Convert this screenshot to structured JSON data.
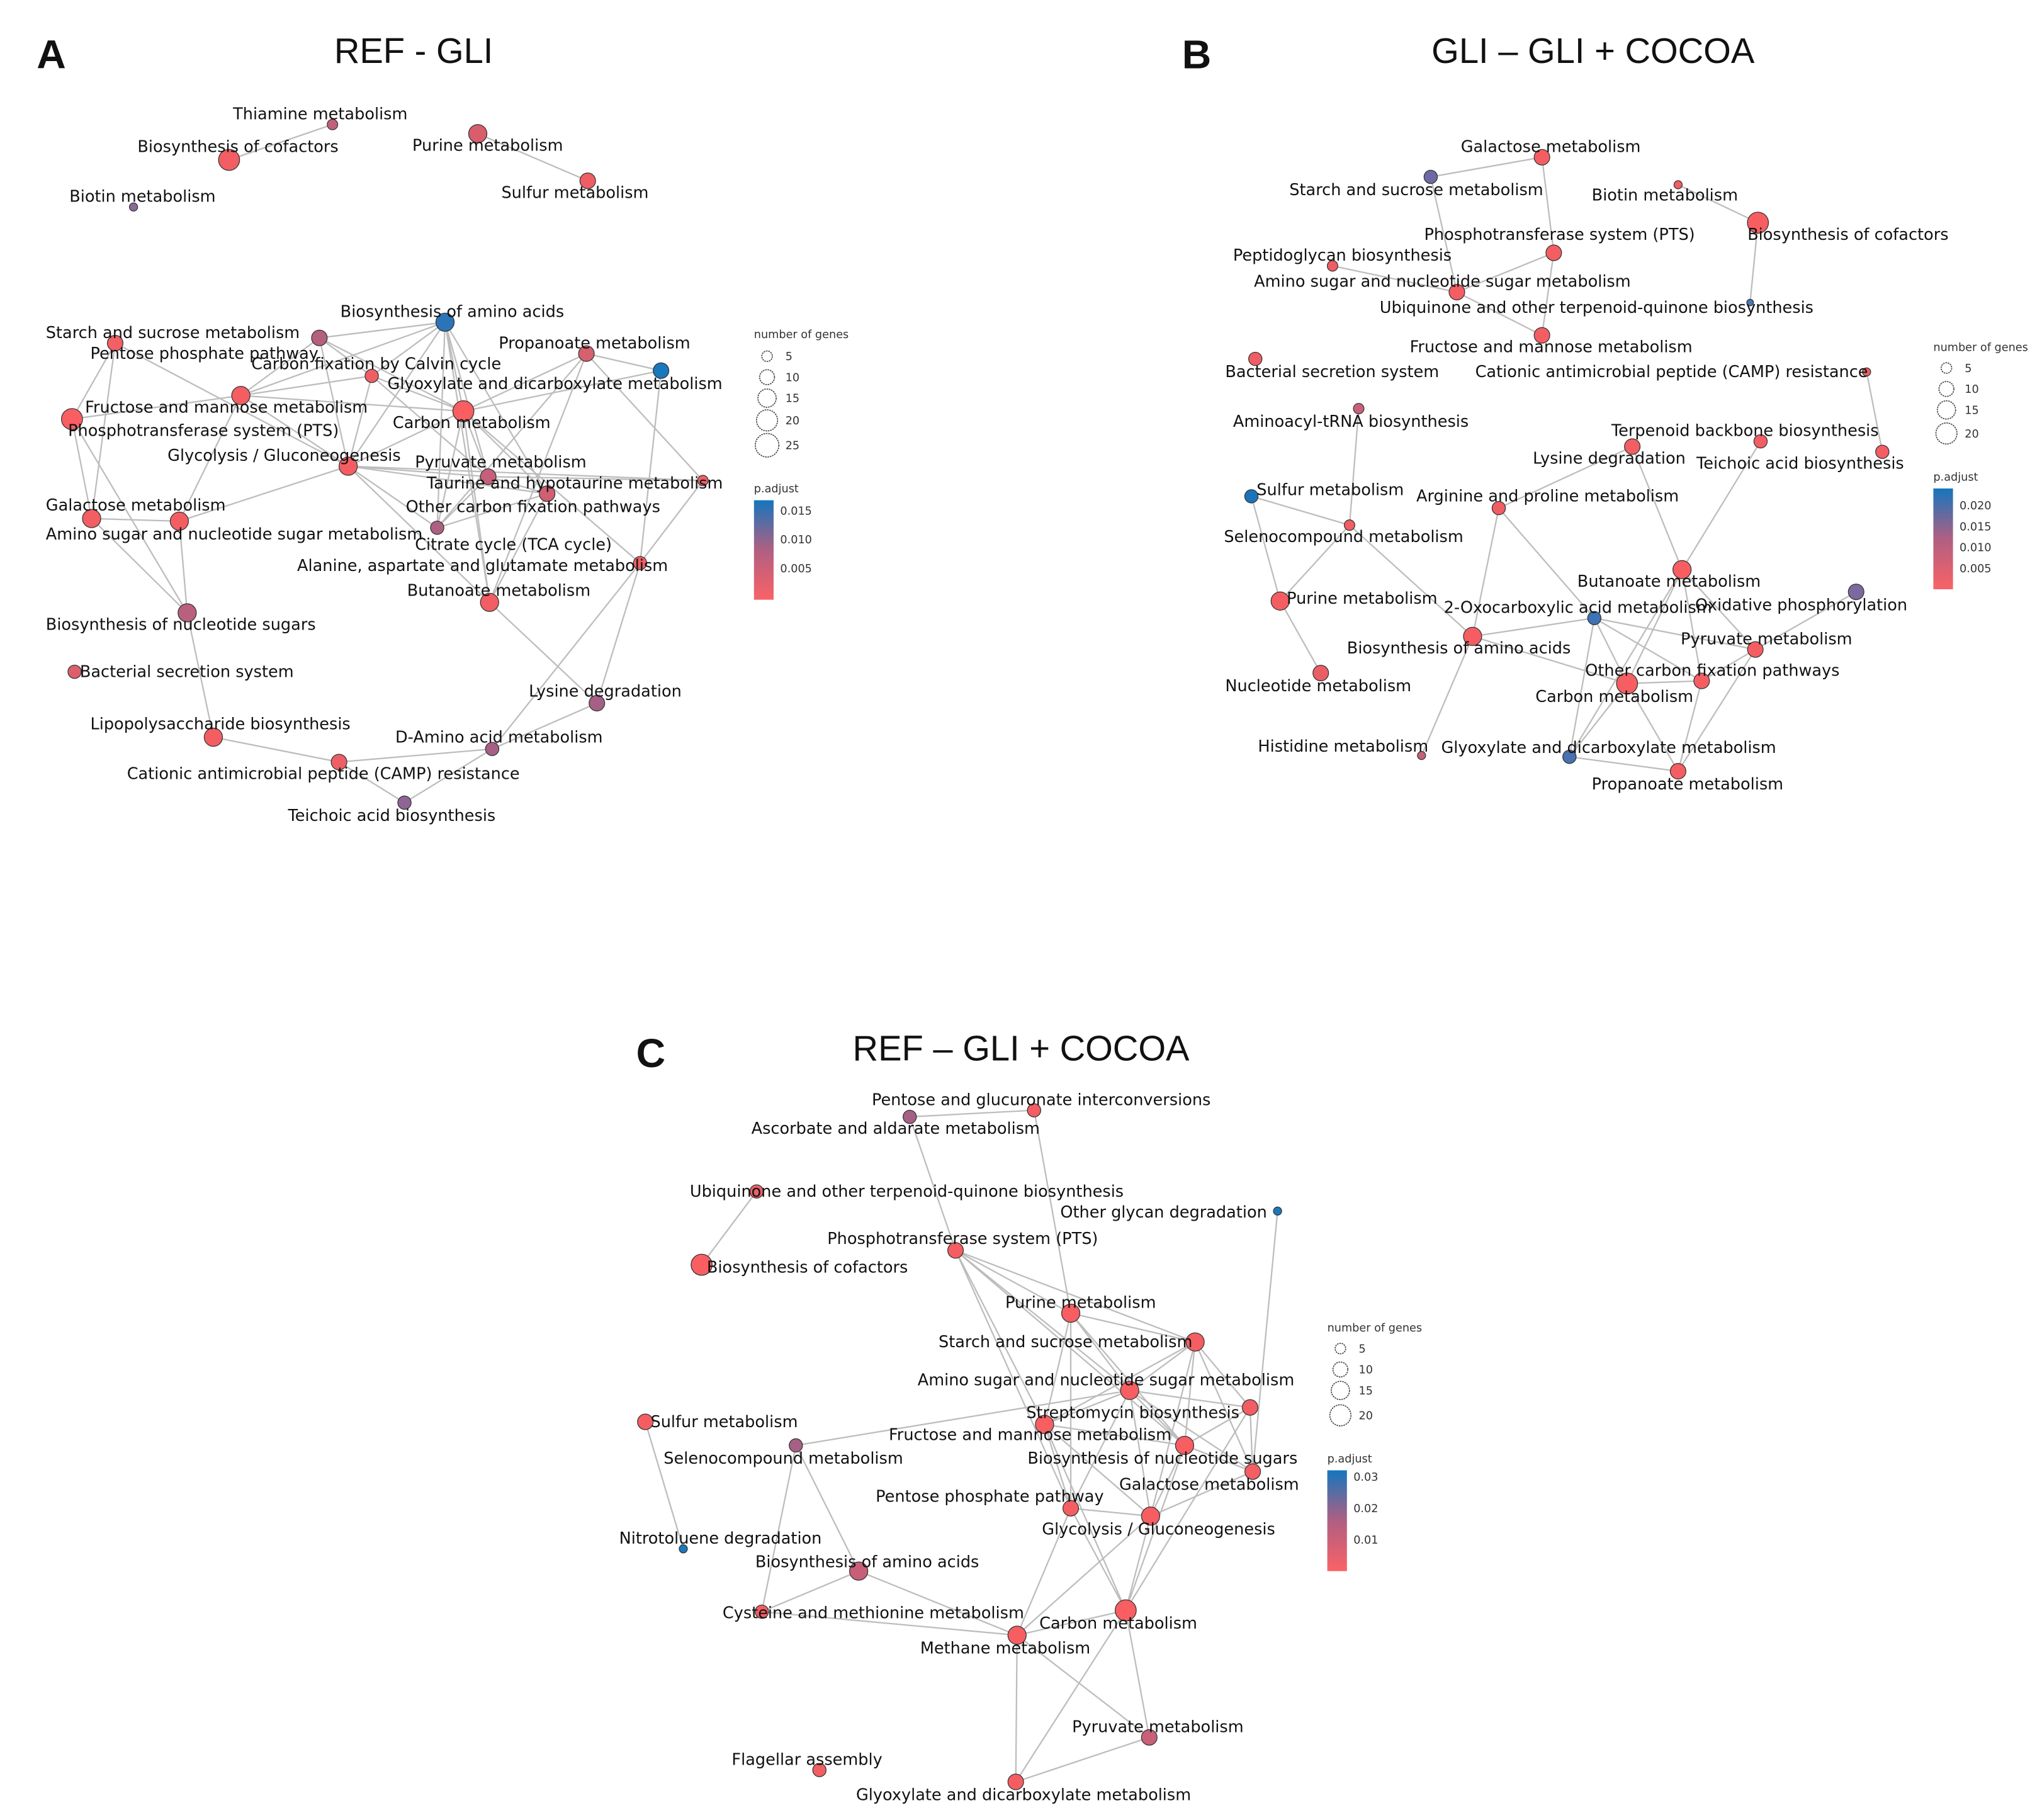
{
  "colors": {
    "low": "#fa6266",
    "mid": "#b05f82",
    "high": "#1576bd",
    "edge": "#bdbdbd"
  },
  "panels": [
    {
      "letter": "A",
      "title": "REF  - GLI",
      "legend": {
        "size_title": "number of genes",
        "sizes": [
          "5",
          "10",
          "15",
          "20",
          "25"
        ],
        "color_title": "p.adjust",
        "ticks": [
          "0.015",
          "0.010",
          "0.005"
        ]
      },
      "nodes": [
        {
          "label": "Thiamine metabolism",
          "color": "#c0607c",
          "genes": 5
        },
        {
          "label": "Biosynthesis of cofactors",
          "color": "#f25e63",
          "genes": 20
        },
        {
          "label": "Biotin metabolism",
          "color": "#8a6a98",
          "genes": 3
        },
        {
          "label": "Purine metabolism",
          "color": "#d85e6c",
          "genes": 15
        },
        {
          "label": "Sulfur metabolism",
          "color": "#ef5e64",
          "genes": 11
        },
        {
          "label": "Biosynthesis of amino acids",
          "color": "#2c74b8",
          "genes": 15
        },
        {
          "label": "Starch and sucrose metabolism",
          "color": "#b4607f",
          "genes": 11
        },
        {
          "label": "Pentose phosphate pathway",
          "color": "#f06064",
          "genes": 11
        },
        {
          "label": "Carbon fixation by Calvin cycle",
          "color": "#ee5f65",
          "genes": 8
        },
        {
          "label": "Propanoate metabolism",
          "color": "#d7606e",
          "genes": 11
        },
        {
          "label": "Glyoxylate and dicarboxylate metabolism",
          "color": "#1a78bd",
          "genes": 11
        },
        {
          "label": "Fructose and mannose metabolism",
          "color": "#f45e63",
          "genes": 15
        },
        {
          "label": "Phosphotransferase system (PTS)",
          "color": "#f85e62",
          "genes": 20
        },
        {
          "label": "Carbon metabolism",
          "color": "#f85e62",
          "genes": 20
        },
        {
          "label": "Glycolysis / Gluconeogenesis",
          "color": "#f45e63",
          "genes": 15
        },
        {
          "label": "Pyruvate metabolism",
          "color": "#c6607a",
          "genes": 11
        },
        {
          "label": "Taurine and hypotaurine metabolism",
          "color": "#e9616a",
          "genes": 5
        },
        {
          "label": "Other carbon fixation pathways",
          "color": "#d05f72",
          "genes": 11
        },
        {
          "label": "Galactose metabolism",
          "color": "#f35e63",
          "genes": 15
        },
        {
          "label": "Amino sugar and nucleotide sugar metabolism",
          "color": "#f35e63",
          "genes": 15
        },
        {
          "label": "Citrate cycle (TCA cycle)",
          "color": "#ad6082",
          "genes": 8
        },
        {
          "label": "Alanine, aspartate and glutamate metabolism",
          "color": "#ec5f66",
          "genes": 8
        },
        {
          "label": "Butanoate metabolism",
          "color": "#f25e63",
          "genes": 15
        },
        {
          "label": "Biosynthesis of nucleotide sugars",
          "color": "#b9607e",
          "genes": 15
        },
        {
          "label": "Bacterial secretion system",
          "color": "#dc5f6c",
          "genes": 8
        },
        {
          "label": "Lysine degradation",
          "color": "#a56086",
          "genes": 11
        },
        {
          "label": "Lipopolysaccharide biosynthesis",
          "color": "#f45e63",
          "genes": 15
        },
        {
          "label": "D-Amino acid metabolism",
          "color": "#a66085",
          "genes": 8
        },
        {
          "label": "Cationic antimicrobial peptide (CAMP) resistance",
          "color": "#ee5f65",
          "genes": 11
        },
        {
          "label": "Teichoic acid biosynthesis",
          "color": "#8e6594",
          "genes": 8
        }
      ],
      "edges": [
        [
          0,
          1
        ],
        [
          3,
          4
        ],
        [
          5,
          6
        ],
        [
          5,
          8
        ],
        [
          5,
          11
        ],
        [
          5,
          13
        ],
        [
          5,
          14
        ],
        [
          5,
          15
        ],
        [
          5,
          17
        ],
        [
          5,
          20
        ],
        [
          5,
          22
        ],
        [
          6,
          11
        ],
        [
          6,
          8
        ],
        [
          6,
          14
        ],
        [
          6,
          13
        ],
        [
          7,
          12
        ],
        [
          7,
          18
        ],
        [
          7,
          14
        ],
        [
          8,
          11
        ],
        [
          8,
          13
        ],
        [
          8,
          14
        ],
        [
          8,
          15
        ],
        [
          9,
          10
        ],
        [
          9,
          13
        ],
        [
          9,
          22
        ],
        [
          9,
          16
        ],
        [
          9,
          20
        ],
        [
          10,
          13
        ],
        [
          10,
          21
        ],
        [
          11,
          12
        ],
        [
          11,
          13
        ],
        [
          11,
          14
        ],
        [
          11,
          19
        ],
        [
          12,
          18
        ],
        [
          12,
          23
        ],
        [
          13,
          14
        ],
        [
          13,
          15
        ],
        [
          13,
          17
        ],
        [
          13,
          20
        ],
        [
          13,
          22
        ],
        [
          13,
          21
        ],
        [
          14,
          15
        ],
        [
          14,
          16
        ],
        [
          14,
          17
        ],
        [
          14,
          19
        ],
        [
          14,
          20
        ],
        [
          14,
          22
        ],
        [
          15,
          16
        ],
        [
          15,
          17
        ],
        [
          15,
          20
        ],
        [
          16,
          21
        ],
        [
          17,
          20
        ],
        [
          17,
          22
        ],
        [
          18,
          19
        ],
        [
          18,
          23
        ],
        [
          19,
          23
        ],
        [
          23,
          26
        ],
        [
          22,
          25
        ],
        [
          21,
          25
        ],
        [
          21,
          27
        ],
        [
          25,
          27
        ],
        [
          26,
          28
        ],
        [
          27,
          28
        ],
        [
          28,
          29
        ],
        [
          27,
          29
        ]
      ]
    },
    {
      "letter": "B",
      "title": "GLI – GLI + COCOA",
      "legend": {
        "size_title": "number of genes",
        "sizes": [
          "5",
          "10",
          "15",
          "20"
        ],
        "color_title": "p.adjust",
        "ticks": [
          "0.020",
          "0.015",
          "0.010",
          "0.005"
        ]
      },
      "nodes": [
        {
          "label": "Galactose metabolism",
          "color": "#f45e63",
          "genes": 11
        },
        {
          "label": "Starch and sucrose metabolism",
          "color": "#6c6aa4",
          "genes": 8
        },
        {
          "label": "Biotin metabolism",
          "color": "#f25e63",
          "genes": 3
        },
        {
          "label": "Biosynthesis of cofactors",
          "color": "#f65e62",
          "genes": 20
        },
        {
          "label": "Phosphotransferase system (PTS)",
          "color": "#f45e63",
          "genes": 11
        },
        {
          "label": "Peptidoglycan biosynthesis",
          "color": "#f05e64",
          "genes": 5
        },
        {
          "label": "Amino sugar and nucleotide sugar metabolism",
          "color": "#f45e63",
          "genes": 11
        },
        {
          "label": "Ubiquinone and other terpenoid-quinone biosynthesis",
          "color": "#4a78b8",
          "genes": 2
        },
        {
          "label": "Fructose and mannose metabolism",
          "color": "#f45e63",
          "genes": 11
        },
        {
          "label": "Bacterial secretion system",
          "color": "#ef5e64",
          "genes": 8
        },
        {
          "label": "Cationic antimicrobial peptide (CAMP) resistance",
          "color": "#e86068",
          "genes": 3
        },
        {
          "label": "Aminoacyl-tRNA biosynthesis",
          "color": "#c9607a",
          "genes": 5
        },
        {
          "label": "Terpenoid backbone biosynthesis",
          "color": "#f25e63",
          "genes": 8
        },
        {
          "label": "Lysine degradation",
          "color": "#f25e63",
          "genes": 11
        },
        {
          "label": "Teichoic acid biosynthesis",
          "color": "#f25e63",
          "genes": 8
        },
        {
          "label": "Sulfur metabolism",
          "color": "#1c74b8",
          "genes": 8
        },
        {
          "label": "Arginine and proline metabolism",
          "color": "#f05e64",
          "genes": 8
        },
        {
          "label": "Selenocompound metabolism",
          "color": "#f25e63",
          "genes": 5
        },
        {
          "label": "Butanoate metabolism",
          "color": "#f65e62",
          "genes": 15
        },
        {
          "label": "Oxidative phosphorylation",
          "color": "#7a6aa0",
          "genes": 11
        },
        {
          "label": "Purine metabolism",
          "color": "#f45e63",
          "genes": 15
        },
        {
          "label": "2-Oxocarboxylic acid metabolism",
          "color": "#3e73b4",
          "genes": 8
        },
        {
          "label": "Pyruvate metabolism",
          "color": "#f45e63",
          "genes": 11
        },
        {
          "label": "Biosynthesis of amino acids",
          "color": "#f45e63",
          "genes": 15
        },
        {
          "label": "Nucleotide metabolism",
          "color": "#ea5f66",
          "genes": 11
        },
        {
          "label": "Other carbon fixation pathways",
          "color": "#f45e63",
          "genes": 11
        },
        {
          "label": "Carbon metabolism",
          "color": "#f65e62",
          "genes": 20
        },
        {
          "label": "Histidine metabolism",
          "color": "#c4607a",
          "genes": 3
        },
        {
          "label": "Glyoxylate and dicarboxylate metabolism",
          "color": "#4a70b0",
          "genes": 8
        },
        {
          "label": "Propanoate metabolism",
          "color": "#f45e63",
          "genes": 11
        }
      ],
      "edges": [
        [
          0,
          1
        ],
        [
          0,
          4
        ],
        [
          1,
          6
        ],
        [
          2,
          3
        ],
        [
          3,
          7
        ],
        [
          4,
          6
        ],
        [
          4,
          8
        ],
        [
          5,
          6
        ],
        [
          6,
          8
        ],
        [
          10,
          14
        ],
        [
          11,
          17
        ],
        [
          15,
          17
        ],
        [
          15,
          20
        ],
        [
          17,
          20
        ],
        [
          17,
          23
        ],
        [
          13,
          16
        ],
        [
          16,
          23
        ],
        [
          16,
          21
        ],
        [
          12,
          18
        ],
        [
          13,
          18
        ],
        [
          20,
          24
        ],
        [
          23,
          21
        ],
        [
          23,
          26
        ],
        [
          23,
          27
        ],
        [
          21,
          26
        ],
        [
          21,
          25
        ],
        [
          21,
          22
        ],
        [
          21,
          28
        ],
        [
          18,
          26
        ],
        [
          18,
          25
        ],
        [
          18,
          22
        ],
        [
          18,
          28
        ],
        [
          19,
          22
        ],
        [
          22,
          25
        ],
        [
          22,
          29
        ],
        [
          26,
          25
        ],
        [
          26,
          29
        ],
        [
          26,
          28
        ],
        [
          28,
          29
        ],
        [
          25,
          29
        ]
      ]
    },
    {
      "letter": "C",
      "title": "REF – GLI  + COCOA",
      "legend": {
        "size_title": "number of genes",
        "sizes": [
          "5",
          "10",
          "15",
          "20"
        ],
        "color_title": "p.adjust",
        "ticks": [
          "0.03",
          "0.02",
          "0.01"
        ]
      },
      "nodes": [
        {
          "label": "Pentose and glucuronate interconversions",
          "color": "#f25e63",
          "genes": 8
        },
        {
          "label": "Ascorbate and aldarate metabolism",
          "color": "#a66085",
          "genes": 8
        },
        {
          "label": "Ubiquinone and other terpenoid-quinone biosynthesis",
          "color": "#e9616a",
          "genes": 8
        },
        {
          "label": "Other glycan degradation",
          "color": "#1a78bd",
          "genes": 3
        },
        {
          "label": "Phosphotransferase system (PTS)",
          "color": "#f45e63",
          "genes": 11
        },
        {
          "label": "Biosynthesis of cofactors",
          "color": "#f85e62",
          "genes": 20
        },
        {
          "label": "Purine metabolism",
          "color": "#f65e62",
          "genes": 15
        },
        {
          "label": "Starch and sucrose metabolism",
          "color": "#f45e63",
          "genes": 15
        },
        {
          "label": "Amino sugar and nucleotide sugar metabolism",
          "color": "#f65e62",
          "genes": 15
        },
        {
          "label": "Streptomycin biosynthesis",
          "color": "#f25e63",
          "genes": 11
        },
        {
          "label": "Sulfur metabolism",
          "color": "#f45e63",
          "genes": 11
        },
        {
          "label": "Fructose and mannose metabolism",
          "color": "#f65e62",
          "genes": 15
        },
        {
          "label": "Selenocompound metabolism",
          "color": "#a66085",
          "genes": 8
        },
        {
          "label": "Biosynthesis of nucleotide sugars",
          "color": "#f65e62",
          "genes": 15
        },
        {
          "label": "Galactose metabolism",
          "color": "#f45e63",
          "genes": 11
        },
        {
          "label": "Pentose phosphate pathway",
          "color": "#f45e63",
          "genes": 11
        },
        {
          "label": "Glycolysis / Gluconeogenesis",
          "color": "#f65e62",
          "genes": 15
        },
        {
          "label": "Nitrotoluene degradation",
          "color": "#1a78bd",
          "genes": 3
        },
        {
          "label": "Biosynthesis of amino acids",
          "color": "#c85f78",
          "genes": 15
        },
        {
          "label": "Cysteine and methionine metabolism",
          "color": "#f05e64",
          "genes": 8
        },
        {
          "label": "Carbon metabolism",
          "color": "#f85e62",
          "genes": 20
        },
        {
          "label": "Methane metabolism",
          "color": "#f65e62",
          "genes": 15
        },
        {
          "label": "Pyruvate metabolism",
          "color": "#c9607a",
          "genes": 11
        },
        {
          "label": "Flagellar assembly",
          "color": "#f25e63",
          "genes": 8
        },
        {
          "label": "Glyoxylate and dicarboxylate metabolism",
          "color": "#f45e63",
          "genes": 11
        }
      ],
      "edges": [
        [
          0,
          1
        ],
        [
          2,
          5
        ],
        [
          0,
          6
        ],
        [
          1,
          4
        ],
        [
          4,
          6
        ],
        [
          4,
          7
        ],
        [
          4,
          8
        ],
        [
          4,
          11
        ],
        [
          4,
          13
        ],
        [
          4,
          15
        ],
        [
          3,
          14
        ],
        [
          6,
          7
        ],
        [
          6,
          8
        ],
        [
          6,
          11
        ],
        [
          6,
          13
        ],
        [
          6,
          15
        ],
        [
          7,
          8
        ],
        [
          7,
          9
        ],
        [
          7,
          13
        ],
        [
          7,
          11
        ],
        [
          7,
          14
        ],
        [
          7,
          16
        ],
        [
          8,
          9
        ],
        [
          8,
          11
        ],
        [
          8,
          13
        ],
        [
          8,
          14
        ],
        [
          8,
          15
        ],
        [
          8,
          16
        ],
        [
          9,
          13
        ],
        [
          9,
          14
        ],
        [
          11,
          13
        ],
        [
          11,
          15
        ],
        [
          11,
          16
        ],
        [
          13,
          14
        ],
        [
          13,
          16
        ],
        [
          14,
          16
        ],
        [
          15,
          16
        ],
        [
          15,
          20
        ],
        [
          15,
          21
        ],
        [
          16,
          20
        ],
        [
          16,
          21
        ],
        [
          10,
          17
        ],
        [
          12,
          18
        ],
        [
          12,
          19
        ],
        [
          12,
          8
        ],
        [
          18,
          19
        ],
        [
          18,
          21
        ],
        [
          19,
          21
        ],
        [
          20,
          21
        ],
        [
          20,
          22
        ],
        [
          20,
          24
        ],
        [
          21,
          22
        ],
        [
          21,
          24
        ],
        [
          22,
          24
        ],
        [
          11,
          20
        ],
        [
          13,
          20
        ],
        [
          9,
          20
        ]
      ]
    }
  ]
}
